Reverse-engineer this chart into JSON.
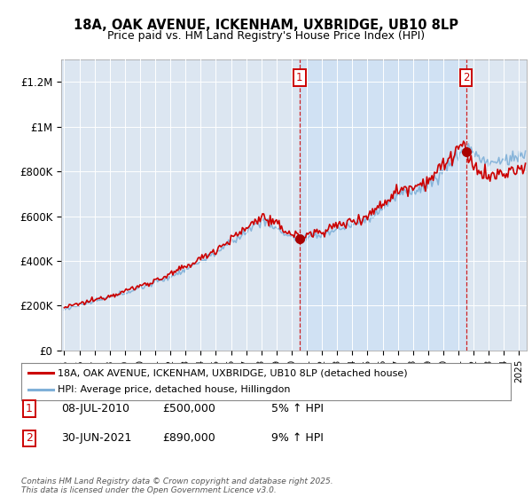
{
  "title_line1": "18A, OAK AVENUE, ICKENHAM, UXBRIDGE, UB10 8LP",
  "title_line2": "Price paid vs. HM Land Registry's House Price Index (HPI)",
  "plot_bg_color": "#dce6f1",
  "shade_color": "#cce0f5",
  "ylabel_ticks": [
    "£0",
    "£200K",
    "£400K",
    "£600K",
    "£800K",
    "£1M",
    "£1.2M"
  ],
  "ytick_values": [
    0,
    200000,
    400000,
    600000,
    800000,
    1000000,
    1200000
  ],
  "ylim": [
    0,
    1300000
  ],
  "xlim_start": 1994.8,
  "xlim_end": 2025.5,
  "sale1_date": 2010.52,
  "sale1_price": 500000,
  "sale2_date": 2021.5,
  "sale2_price": 890000,
  "legend_line1": "18A, OAK AVENUE, ICKENHAM, UXBRIDGE, UB10 8LP (detached house)",
  "legend_line2": "HPI: Average price, detached house, Hillingdon",
  "footer": "Contains HM Land Registry data © Crown copyright and database right 2025.\nThis data is licensed under the Open Government Licence v3.0.",
  "line_color_property": "#cc0000",
  "line_color_hpi": "#7fb0d8",
  "dashed_line_color": "#cc0000",
  "marker_color_sale": "#aa0000",
  "ann1_num": "1",
  "ann1_date": "08-JUL-2010",
  "ann1_price": "£500,000",
  "ann1_pct": "5% ↑ HPI",
  "ann2_num": "2",
  "ann2_date": "30-JUN-2021",
  "ann2_price": "£890,000",
  "ann2_pct": "9% ↑ HPI"
}
